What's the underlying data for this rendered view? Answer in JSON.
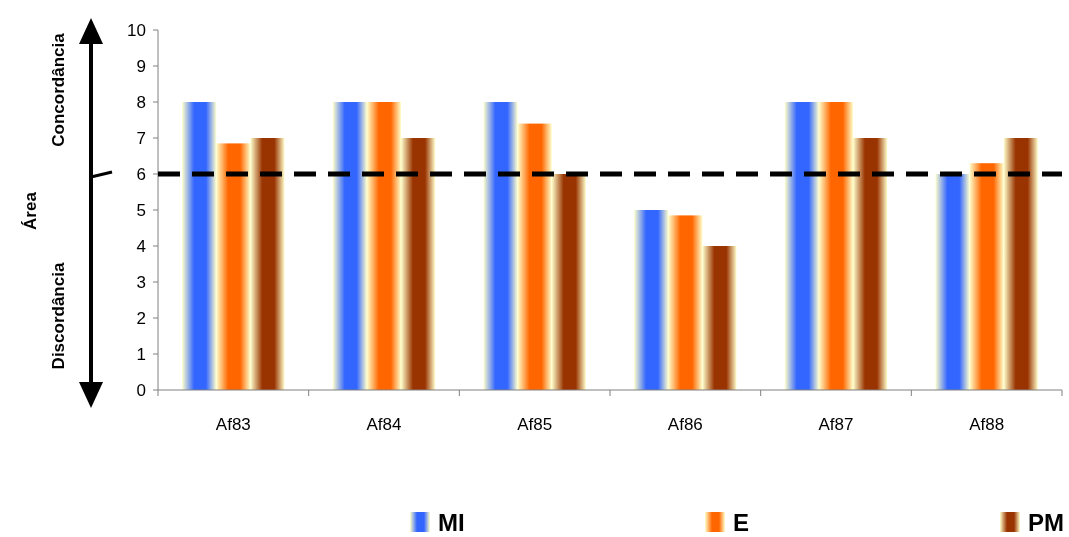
{
  "chart_data": {
    "type": "bar",
    "categories": [
      "Af83",
      "Af84",
      "Af85",
      "Af86",
      "Af87",
      "Af88"
    ],
    "series": [
      {
        "name": "MI",
        "color": "#3366ff",
        "values": [
          8,
          8,
          8,
          5,
          8,
          6
        ]
      },
      {
        "name": "E",
        "color": "#ff6600",
        "values": [
          6.85,
          8,
          7.4,
          4.85,
          8,
          6.3
        ]
      },
      {
        "name": "PM",
        "color": "#993300",
        "values": [
          7,
          7,
          6,
          4,
          7,
          7
        ]
      }
    ],
    "ylim": [
      0,
      10
    ],
    "yticks": [
      0,
      1,
      2,
      3,
      4,
      5,
      6,
      7,
      8,
      9,
      10
    ],
    "ref_lines": [
      {
        "axis": "y",
        "value": 6,
        "color": "#000000",
        "line_style": "dashed"
      }
    ],
    "annotations": [
      "Concordância",
      "Área",
      "Discordância"
    ],
    "legend": "bottom",
    "grid": false
  }
}
